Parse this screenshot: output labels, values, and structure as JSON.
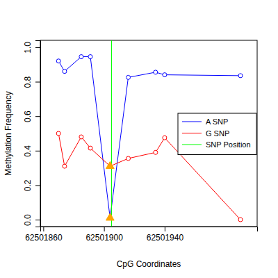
{
  "chart_data": {
    "type": "line",
    "x_label": "CpG Coordinates",
    "y_label": "Methylation Frequency",
    "x": [
      62501870,
      62501874,
      62501885,
      62501891,
      62501904,
      62501916,
      62501934,
      62501940,
      62501990
    ],
    "series": [
      {
        "name": "A SNP",
        "color": "#0000ff",
        "marker": "circle",
        "line_style": "solid",
        "values": [
          0.92,
          0.86,
          0.945,
          0.945,
          0.01,
          0.825,
          0.855,
          0.84,
          0.835
        ]
      },
      {
        "name": "G SNP",
        "color": "#ff0000",
        "marker": "circle",
        "line_style": "solid",
        "values": [
          0.5,
          0.31,
          0.48,
          0.415,
          0.31,
          0.355,
          0.39,
          0.475,
          0.0
        ]
      }
    ],
    "reference_lines": [
      {
        "name": "SNP Position",
        "x": 62501905,
        "color": "#00ff00"
      }
    ],
    "snp_cpg_markers": {
      "x": [
        62501904,
        62501904
      ],
      "values": [
        0.31,
        0.01
      ],
      "color": "#ffa500",
      "marker": "triangle"
    },
    "xlim": [
      62501858,
      62502001
    ],
    "xticks": [
      62501860,
      62501900,
      62501940
    ],
    "ylim": [
      -0.04,
      1.04
    ],
    "yticks": [
      {
        "value": 0,
        "label": "0.0"
      },
      0.2,
      0.4,
      0.6,
      0.8,
      {
        "value": 1,
        "label": "1.0"
      }
    ],
    "legend": "right",
    "grid": false
  }
}
